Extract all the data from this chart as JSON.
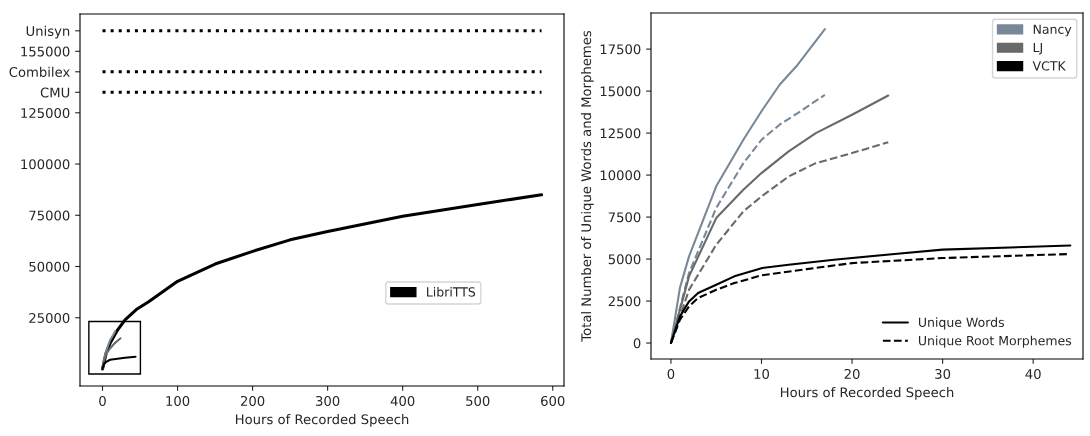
{
  "chart_data": [
    {
      "type": "line",
      "xlabel": "Hours of Recorded Speech",
      "xlim": [
        -30,
        615
      ],
      "xticks": [
        0,
        100,
        200,
        300,
        400,
        500,
        600
      ],
      "ylim": [
        -8300,
        173200
      ],
      "yticks": [
        25000,
        50000,
        75000,
        100000,
        125000,
        {
          "value": 135000,
          "label": "CMU"
        },
        {
          "value": 145000,
          "label": "Combilex"
        },
        155000,
        {
          "value": 165000,
          "label": "Unisyn"
        }
      ],
      "legend": "center right",
      "grid": false,
      "series": [
        {
          "name": "LibriTTS",
          "color": "#000000",
          "x": [
            0,
            5,
            10,
            20,
            30,
            45,
            61,
            100,
            150,
            200,
            250,
            300,
            400,
            500,
            585
          ],
          "values": [
            0,
            8000,
            12500,
            19000,
            24000,
            29000,
            32700,
            42800,
            51200,
            57400,
            63000,
            67100,
            74500,
            80300,
            85000
          ]
        },
        {
          "color": "#778899",
          "x": [
            0,
            2,
            5,
            10,
            14,
            17
          ],
          "values": [
            0,
            5000,
            9000,
            14000,
            16500,
            18500
          ]
        },
        {
          "color": "#696969",
          "x": [
            0,
            2,
            5,
            10,
            16,
            24
          ],
          "values": [
            0,
            4000,
            7500,
            10000,
            12500,
            15000
          ]
        },
        {
          "color": "#000000",
          "x": [
            0,
            2,
            5,
            10,
            20,
            30,
            44
          ],
          "values": [
            0,
            2500,
            3500,
            4500,
            5000,
            5500,
            6000
          ]
        },
        {
          "color": "#000000",
          "line_style": "dotted",
          "x": [
            0,
            585
          ],
          "values": [
            165000,
            165000
          ]
        },
        {
          "color": "#000000",
          "line_style": "dotted",
          "x": [
            0,
            585
          ],
          "values": [
            145000,
            145000
          ]
        },
        {
          "color": "#000000",
          "line_style": "dotted",
          "x": [
            0,
            585
          ],
          "values": [
            135000,
            135000
          ]
        }
      ]
    },
    {
      "type": "line",
      "xlabel": "Hours of Recorded Speech",
      "ylabel": "Total Number of Unique Words and Morphemes",
      "xlim": [
        -2.2,
        45.5
      ],
      "xticks": [
        0,
        10,
        20,
        30,
        40
      ],
      "ylim": [
        -950,
        19650
      ],
      "yticks": [
        0,
        2500,
        5000,
        7500,
        10000,
        12500,
        15000,
        17500
      ],
      "legend": "right",
      "grid": false,
      "annotations": [
        "Unique Words",
        "Unique Root Morphemes"
      ],
      "series": [
        {
          "name": "Nancy",
          "color": "#778899",
          "x": [
            0,
            1,
            2,
            5,
            8,
            10,
            12,
            14,
            17
          ],
          "values": [
            0,
            3300,
            5160,
            9330,
            12100,
            13800,
            15380,
            16570,
            18690
          ]
        },
        {
          "color": "#778899",
          "line_style": "dashed",
          "x": [
            0,
            2,
            5,
            8,
            10,
            12,
            14,
            17
          ],
          "values": [
            0,
            4170,
            8040,
            10710,
            12100,
            13000,
            13690,
            14780
          ]
        },
        {
          "name": "LJ",
          "color": "#696969",
          "x": [
            0,
            2,
            5,
            8,
            10,
            13,
            16,
            20,
            24
          ],
          "values": [
            0,
            3970,
            7440,
            9130,
            10120,
            11410,
            12500,
            13590,
            14740
          ]
        },
        {
          "color": "#696969",
          "line_style": "dashed",
          "x": [
            0,
            2,
            5,
            8,
            10,
            13,
            16,
            20,
            24
          ],
          "values": [
            0,
            3170,
            5850,
            7840,
            8730,
            9920,
            10710,
            11310,
            11960
          ]
        },
        {
          "name": "VCTK",
          "color": "#000000",
          "x": [
            0,
            1,
            2,
            3,
            5,
            7,
            10,
            13,
            18,
            25,
            30,
            44.1
          ],
          "values": [
            0,
            1590,
            2480,
            2980,
            3470,
            3970,
            4460,
            4660,
            4960,
            5320,
            5560,
            5810
          ]
        },
        {
          "color": "#000000",
          "line_style": "dashed",
          "x": [
            0,
            1,
            2,
            3,
            5,
            7,
            10,
            15,
            20,
            30,
            44
          ],
          "values": [
            0,
            1390,
            2180,
            2680,
            3170,
            3570,
            4030,
            4400,
            4760,
            5060,
            5300
          ]
        }
      ]
    }
  ]
}
